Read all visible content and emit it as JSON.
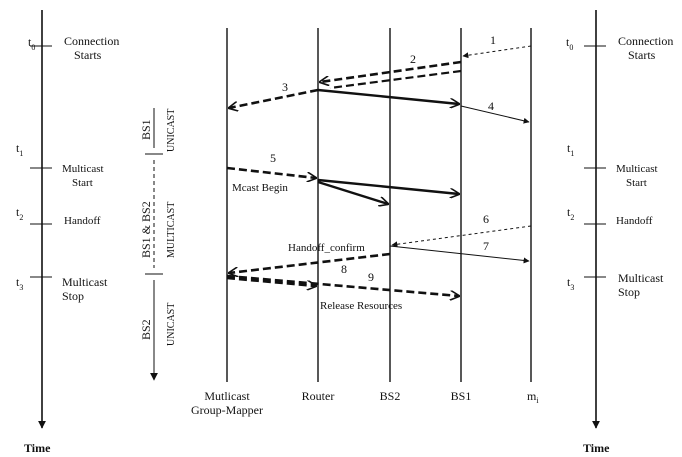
{
  "left_timeline": {
    "events": [
      {
        "time": "t",
        "sub": "0",
        "label_lines": [
          "Connection",
          "Starts"
        ]
      },
      {
        "time": "t",
        "sub": "1",
        "label_lines": [
          "Multicast",
          "Start"
        ]
      },
      {
        "time": "t",
        "sub": "2",
        "label_lines": [
          "Handoff"
        ]
      },
      {
        "time": "t",
        "sub": "3",
        "label_lines": [
          "Multicast",
          "Stop"
        ]
      }
    ],
    "axis_label": "Time"
  },
  "right_timeline": {
    "events": [
      {
        "time": "t",
        "sub": "0",
        "label_lines": [
          "Connection",
          "Starts"
        ]
      },
      {
        "time": "t",
        "sub": "1",
        "label_lines": [
          "Multicast",
          "Start"
        ]
      },
      {
        "time": "t",
        "sub": "2",
        "label_lines": [
          "Handoff"
        ]
      },
      {
        "time": "t",
        "sub": "3",
        "label_lines": [
          "Multicast",
          "Stop"
        ]
      }
    ],
    "axis_label": "Time"
  },
  "phases": [
    {
      "station": "BS1",
      "mode": "UNICAST"
    },
    {
      "station": "BS1 & BS2",
      "mode": "MULTICAST"
    },
    {
      "station": "BS2",
      "mode": "UNICAST"
    }
  ],
  "entities": [
    {
      "id": "mgm",
      "label_lines": [
        "Mutlicast",
        "Group-Mapper"
      ]
    },
    {
      "id": "router",
      "label_lines": [
        "Router"
      ]
    },
    {
      "id": "bs2",
      "label_lines": [
        "BS2"
      ]
    },
    {
      "id": "bs1",
      "label_lines": [
        "BS1"
      ]
    },
    {
      "id": "mh",
      "label_lines": [
        "m"
      ],
      "subscript": "i"
    }
  ],
  "messages": [
    {
      "number": "1",
      "from": "mh",
      "to": "bs1",
      "style": "thin-dashed"
    },
    {
      "number": "2",
      "from": "bs1",
      "to": "router",
      "style": "thick-dashed"
    },
    {
      "number": "3",
      "from": "router",
      "to": "mgm",
      "style": "thick-dashed"
    },
    {
      "number": "",
      "from": "router",
      "to": "bs1",
      "style": "thick-solid"
    },
    {
      "number": "4",
      "from": "bs1",
      "to": "mh",
      "style": "thin-solid"
    },
    {
      "number": "5",
      "from": "mgm",
      "to": "router",
      "style": "thick-dashed",
      "caption": "Mcast Begin"
    },
    {
      "number": "",
      "from": "router",
      "to": "bs1",
      "style": "thick-solid"
    },
    {
      "number": "",
      "from": "router",
      "to": "bs2",
      "style": "thick-solid"
    },
    {
      "number": "6",
      "from": "mh",
      "to": "bs2",
      "style": "thin-dashed",
      "caption": "Handoff_confirm"
    },
    {
      "number": "7",
      "from": "bs2",
      "to": "mh",
      "style": "thin-solid"
    },
    {
      "number": "8",
      "from": "bs2",
      "to": "mgm",
      "style": "thick-dashed"
    },
    {
      "number": "9",
      "from": "mgm",
      "to": "bs1",
      "style": "thick-dashed",
      "caption": "Release Resources"
    }
  ]
}
